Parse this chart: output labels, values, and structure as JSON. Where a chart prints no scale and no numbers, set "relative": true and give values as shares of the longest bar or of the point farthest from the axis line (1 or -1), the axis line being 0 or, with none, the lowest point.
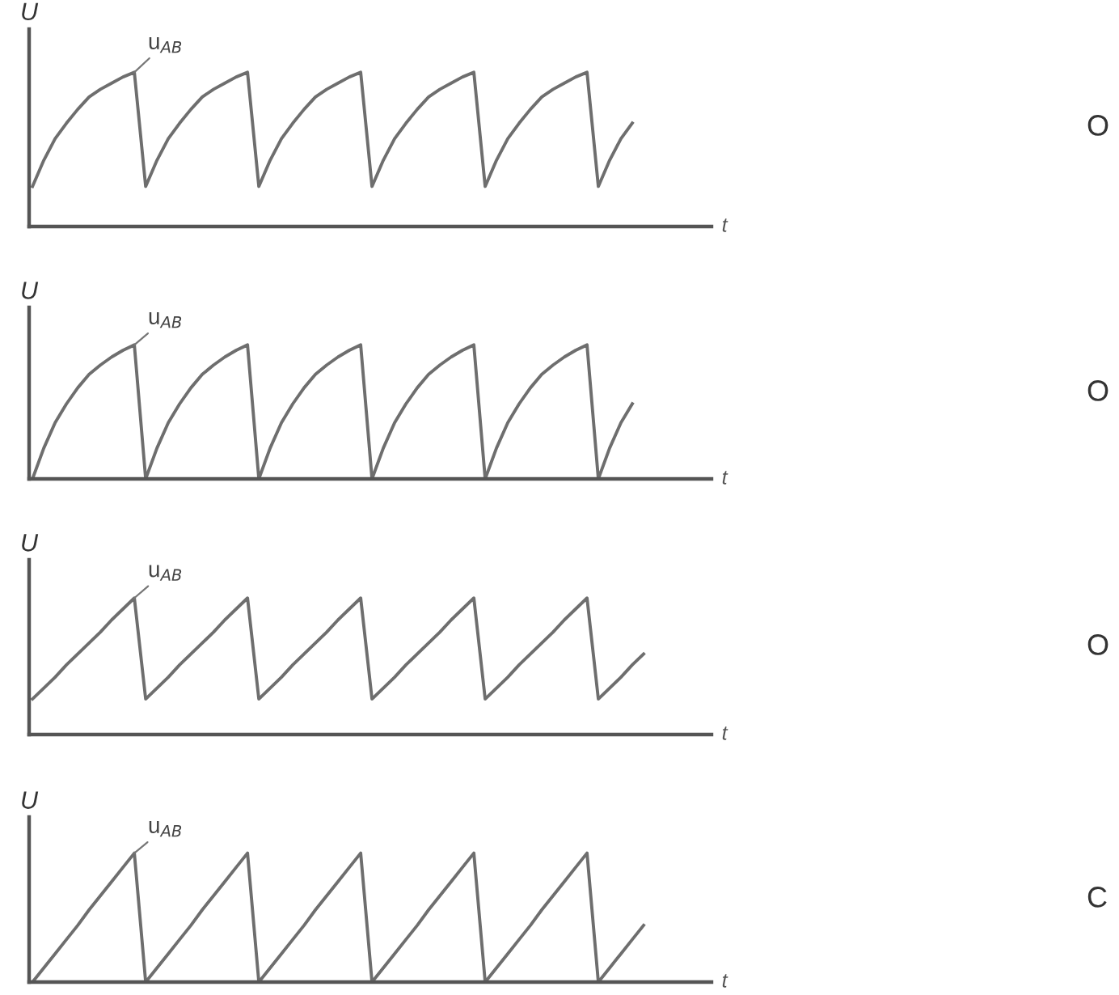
{
  "chart_data": [
    {
      "type": "line",
      "relative": true,
      "ylabel": "U",
      "xlabel": "t",
      "tick_labels": false,
      "marker": "none",
      "line_style": "solid",
      "annotations": [
        "u$_{AB}$",
        "O"
      ],
      "categories": [
        null,
        null,
        null,
        null,
        null,
        null,
        null,
        null,
        null,
        null,
        null,
        null,
        null,
        null,
        null,
        null,
        null,
        null,
        null,
        null,
        null,
        null,
        null,
        null,
        null,
        null,
        null,
        null,
        null,
        null,
        null,
        null,
        null,
        null,
        null,
        null,
        null,
        null,
        null,
        null,
        null,
        null,
        null,
        null,
        null,
        null,
        null,
        null,
        null,
        null,
        null,
        null,
        null,
        null,
        null,
        null,
        null,
        null,
        null,
        null,
        null
      ],
      "series": [
        {
          "color": "#6e6e6e",
          "values": [
            0.26,
            0.43,
            0.57,
            0.67,
            0.76,
            0.84,
            0.89,
            0.93,
            0.97,
            1.0,
            0.26,
            0.43,
            0.57,
            0.67,
            0.76,
            0.84,
            0.89,
            0.93,
            0.97,
            1.0,
            0.26,
            0.43,
            0.57,
            0.67,
            0.76,
            0.84,
            0.89,
            0.93,
            0.97,
            1.0,
            0.26,
            0.43,
            0.57,
            0.67,
            0.76,
            0.84,
            0.89,
            0.93,
            0.97,
            1.0,
            0.26,
            0.43,
            0.57,
            0.67,
            0.76,
            0.84,
            0.89,
            0.93,
            0.97,
            1.0,
            0.26,
            0.43,
            0.57,
            0.67,
            null,
            null,
            null,
            null,
            null,
            null,
            null
          ]
        }
      ]
    },
    {
      "type": "line",
      "relative": true,
      "ylabel": "U",
      "xlabel": "t",
      "tick_labels": false,
      "marker": "none",
      "line_style": "solid",
      "annotations": [
        "u$_{AB}$",
        "O"
      ],
      "categories": [
        null,
        null,
        null,
        null,
        null,
        null,
        null,
        null,
        null,
        null,
        null,
        null,
        null,
        null,
        null,
        null,
        null,
        null,
        null,
        null,
        null,
        null,
        null,
        null,
        null,
        null,
        null,
        null,
        null,
        null,
        null,
        null,
        null,
        null,
        null,
        null,
        null,
        null,
        null,
        null,
        null,
        null,
        null,
        null,
        null,
        null,
        null,
        null,
        null,
        null,
        null,
        null,
        null,
        null,
        null,
        null,
        null,
        null,
        null,
        null,
        null
      ],
      "series": [
        {
          "color": "#6e6e6e",
          "values": [
            0,
            0.23,
            0.42,
            0.56,
            0.68,
            0.78,
            0.85,
            0.91,
            0.96,
            1.0,
            0,
            0.23,
            0.42,
            0.56,
            0.68,
            0.78,
            0.85,
            0.91,
            0.96,
            1.0,
            0,
            0.23,
            0.42,
            0.56,
            0.68,
            0.78,
            0.85,
            0.91,
            0.96,
            1.0,
            0,
            0.23,
            0.42,
            0.56,
            0.68,
            0.78,
            0.85,
            0.91,
            0.96,
            1.0,
            0,
            0.23,
            0.42,
            0.56,
            0.68,
            0.78,
            0.85,
            0.91,
            0.96,
            1.0,
            0,
            0.23,
            0.42,
            0.56,
            null,
            null,
            null,
            null,
            null,
            null,
            null
          ]
        }
      ]
    },
    {
      "type": "line",
      "relative": true,
      "ylabel": "U",
      "xlabel": "t",
      "tick_labels": false,
      "marker": "none",
      "line_style": "solid",
      "annotations": [
        "u$_{AB}$",
        "O"
      ],
      "categories": [
        null,
        null,
        null,
        null,
        null,
        null,
        null,
        null,
        null,
        null,
        null,
        null,
        null,
        null,
        null,
        null,
        null,
        null,
        null,
        null,
        null,
        null,
        null,
        null,
        null,
        null,
        null,
        null,
        null,
        null,
        null,
        null,
        null,
        null,
        null,
        null,
        null,
        null,
        null,
        null,
        null,
        null,
        null,
        null,
        null,
        null,
        null,
        null,
        null,
        null,
        null,
        null,
        null,
        null,
        null,
        null,
        null,
        null,
        null,
        null,
        null
      ],
      "series": [
        {
          "color": "#6e6e6e",
          "values": [
            0.26,
            0.34,
            0.42,
            0.51,
            0.59,
            0.67,
            0.75,
            0.84,
            0.92,
            1.0,
            0.26,
            0.34,
            0.42,
            0.51,
            0.59,
            0.67,
            0.75,
            0.84,
            0.92,
            1.0,
            0.26,
            0.34,
            0.42,
            0.51,
            0.59,
            0.67,
            0.75,
            0.84,
            0.92,
            1.0,
            0.26,
            0.34,
            0.42,
            0.51,
            0.59,
            0.67,
            0.75,
            0.84,
            0.92,
            1.0,
            0.26,
            0.34,
            0.42,
            0.51,
            0.59,
            0.67,
            0.75,
            0.84,
            0.92,
            1.0,
            0.26,
            0.34,
            0.42,
            0.51,
            0.59,
            null,
            null,
            null,
            null,
            null,
            null
          ]
        }
      ]
    },
    {
      "type": "line",
      "relative": true,
      "ylabel": "U",
      "xlabel": "t",
      "tick_labels": false,
      "marker": "none",
      "line_style": "solid",
      "annotations": [
        "u$_{AB}$",
        "C"
      ],
      "categories": [
        null,
        null,
        null,
        null,
        null,
        null,
        null,
        null,
        null,
        null,
        null,
        null,
        null,
        null,
        null,
        null,
        null,
        null,
        null,
        null,
        null,
        null,
        null,
        null,
        null,
        null,
        null,
        null,
        null,
        null,
        null,
        null,
        null,
        null,
        null,
        null,
        null,
        null,
        null,
        null,
        null,
        null,
        null,
        null,
        null,
        null,
        null,
        null,
        null,
        null,
        null,
        null,
        null,
        null,
        null,
        null,
        null,
        null,
        null,
        null,
        null
      ],
      "series": [
        {
          "color": "#6e6e6e",
          "values": [
            0,
            0.11,
            0.22,
            0.33,
            0.44,
            0.56,
            0.67,
            0.78,
            0.89,
            1.0,
            0,
            0.11,
            0.22,
            0.33,
            0.44,
            0.56,
            0.67,
            0.78,
            0.89,
            1.0,
            0,
            0.11,
            0.22,
            0.33,
            0.44,
            0.56,
            0.67,
            0.78,
            0.89,
            1.0,
            0,
            0.11,
            0.22,
            0.33,
            0.44,
            0.56,
            0.67,
            0.78,
            0.89,
            1.0,
            0,
            0.11,
            0.22,
            0.33,
            0.44,
            0.56,
            0.67,
            0.78,
            0.89,
            1.0,
            0,
            0.11,
            0.22,
            0.33,
            0.44,
            null,
            null,
            null,
            null,
            null,
            null
          ]
        }
      ]
    }
  ]
}
